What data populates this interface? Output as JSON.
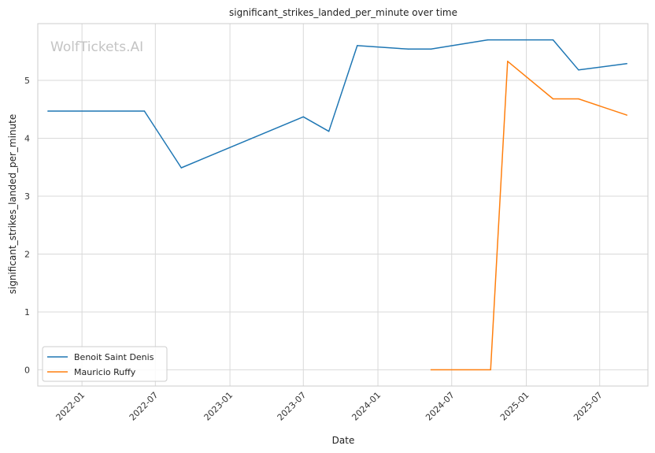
{
  "chart_data": {
    "type": "line",
    "title": "significant_strikes_landed_per_minute over time",
    "xlabel": "Date",
    "ylabel": "significant_strikes_landed_per_minute",
    "xlim": [
      "2021-09-14",
      "2025-10-28"
    ],
    "ylim": [
      -0.28,
      5.98
    ],
    "x_ticks": [
      "2022-01",
      "2022-07",
      "2023-01",
      "2023-07",
      "2024-01",
      "2024-07",
      "2025-01",
      "2025-07"
    ],
    "y_ticks": [
      0,
      1,
      2,
      3,
      4,
      5
    ],
    "grid": true,
    "legend_position": "lower-left",
    "watermark": "WolfTickets.AI",
    "series": [
      {
        "name": "Benoit Saint Denis",
        "color": "#1f77b4",
        "points": [
          {
            "x": "2021-10-09",
            "y": 4.47
          },
          {
            "x": "2022-06-04",
            "y": 4.47
          },
          {
            "x": "2022-09-03",
            "y": 3.49
          },
          {
            "x": "2023-07-01",
            "y": 4.37
          },
          {
            "x": "2023-09-02",
            "y": 4.12
          },
          {
            "x": "2023-11-11",
            "y": 5.6
          },
          {
            "x": "2024-03-16",
            "y": 5.54
          },
          {
            "x": "2024-05-11",
            "y": 5.54
          },
          {
            "x": "2024-09-28",
            "y": 5.7
          },
          {
            "x": "2025-03-08",
            "y": 5.7
          },
          {
            "x": "2025-05-10",
            "y": 5.18
          },
          {
            "x": "2025-09-06",
            "y": 5.29
          }
        ]
      },
      {
        "name": "Mauricio Ruffy",
        "color": "#ff7f0e",
        "points": [
          {
            "x": "2024-05-11",
            "y": 0.0
          },
          {
            "x": "2024-10-05",
            "y": 0.0
          },
          {
            "x": "2024-11-16",
            "y": 5.33
          },
          {
            "x": "2025-03-08",
            "y": 4.68
          },
          {
            "x": "2025-05-10",
            "y": 4.68
          },
          {
            "x": "2025-09-06",
            "y": 4.4
          }
        ]
      }
    ]
  }
}
